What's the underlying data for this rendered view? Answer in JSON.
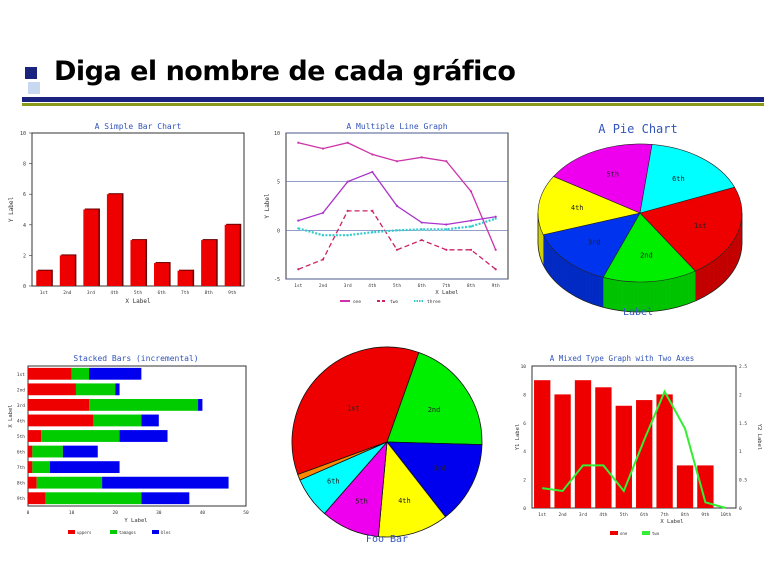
{
  "slide": {
    "title": "Diga el nombre de cada gráfico"
  },
  "chart_data": [
    {
      "id": "simple_bar",
      "type": "bar",
      "title": "A Simple Bar Chart",
      "xlabel": "X Label",
      "ylabel": "Y Label",
      "categories": [
        "1st",
        "2nd",
        "3rd",
        "4th",
        "5th",
        "6th",
        "7th",
        "8th",
        "9th"
      ],
      "values": [
        1,
        2,
        5,
        6,
        3,
        1.5,
        1,
        3,
        4
      ],
      "ylim": [
        0,
        10
      ],
      "yticks": [
        "0",
        "2",
        "4",
        "6",
        "8",
        "10"
      ],
      "colors": {
        "bar": "#ee0000",
        "bar_edge": "#660000"
      }
    },
    {
      "id": "multi_line",
      "type": "line",
      "title": "A Multiple Line Graph",
      "xlabel": "X Label",
      "ylabel": "Y Label",
      "categories": [
        "1st",
        "2nd",
        "3rd",
        "4th",
        "5th",
        "6th",
        "7th",
        "8th",
        "9th"
      ],
      "ylim": [
        -5,
        10
      ],
      "yticks": [
        "-5",
        "0",
        "5",
        "10"
      ],
      "series": [
        {
          "name": "one",
          "values": [
            9,
            8.4,
            9,
            7.8,
            7.1,
            7.5,
            7.1,
            4,
            -2
          ],
          "color": "#cc33aa",
          "dash": "solid"
        },
        {
          "name": "two",
          "values": [
            -4,
            -3,
            2,
            2,
            -2,
            -1,
            -2,
            -2,
            -4
          ],
          "color": "#cc2266",
          "dash": "dashed"
        },
        {
          "name": "three",
          "values": [
            0.2,
            -0.5,
            -0.5,
            -0.2,
            0,
            0.1,
            0.1,
            0.4,
            1.2
          ],
          "color": "#33cccc",
          "dash": "dotted"
        },
        {
          "name": "",
          "values": [
            1,
            1.8,
            5,
            6,
            2.5,
            0.8,
            0.6,
            1,
            1.4
          ],
          "color": "#aa33cc",
          "dash": "solid"
        }
      ],
      "legend_position": "bottom"
    },
    {
      "id": "pie_3d",
      "type": "pie",
      "title": "A Pie Chart",
      "xlabel": "Label",
      "categories": [
        "1st",
        "2nd",
        "3rd",
        "4th",
        "5th",
        "6th"
      ],
      "values": [
        22,
        15,
        14,
        14,
        18,
        17
      ],
      "colors": [
        "#ee0000",
        "#00ee00",
        "#0033ee",
        "#ffff00",
        "#ee00ee",
        "#00ffff"
      ]
    },
    {
      "id": "stacked_bars",
      "type": "bar",
      "orientation": "horizontal",
      "title": "Stacked Bars (incremental)",
      "xlabel": "Y Label",
      "ylabel": "X Label",
      "categories": [
        "1st",
        "2nd",
        "3rd",
        "4th",
        "5th",
        "6th",
        "7th",
        "8th",
        "9th"
      ],
      "xlim": [
        0,
        50
      ],
      "xticks": [
        "0",
        "10",
        "20",
        "30",
        "40",
        "50"
      ],
      "series": [
        {
          "name": "uppers",
          "values": [
            10,
            11,
            14,
            15,
            3,
            1,
            1,
            2,
            4
          ],
          "color": "#ee0000"
        },
        {
          "name": "tamagos",
          "values": [
            4,
            9,
            25,
            11,
            18,
            7,
            4,
            15,
            22
          ],
          "color": "#00cc00"
        },
        {
          "name": "bles",
          "values": [
            12,
            1,
            1,
            4,
            11,
            8,
            16,
            29,
            11
          ],
          "color": "#0000ee"
        }
      ],
      "legend_position": "bottom"
    },
    {
      "id": "pie_flat",
      "type": "pie",
      "xlabel": "Foo Bar",
      "categories": [
        "1st",
        "2nd",
        "3rd",
        "4th",
        "5th",
        "6th",
        "7th"
      ],
      "values": [
        36,
        20,
        14,
        12,
        10,
        7,
        1
      ],
      "colors": [
        "#ee0000",
        "#00ee00",
        "#0000ee",
        "#ffff00",
        "#ee00ee",
        "#00ffff",
        "#ff8800"
      ]
    },
    {
      "id": "mixed_two_axes",
      "type": "bar",
      "title": "A Mixed Type Graph with Two Axes",
      "xlabel": "X Label",
      "ylabel": "Y1 Label",
      "y2label": "Y2 Label",
      "categories": [
        "1st",
        "2nd",
        "3rd",
        "4th",
        "5th",
        "6th",
        "7th",
        "8th",
        "9th",
        "10th"
      ],
      "ylim": [
        0,
        10
      ],
      "yticks": [
        "0",
        "2",
        "4",
        "6",
        "8",
        "10"
      ],
      "y2lim": [
        0,
        2.5
      ],
      "y2ticks": [
        "0",
        "0.5",
        "1",
        "1.5",
        "2",
        "2.5"
      ],
      "series": [
        {
          "name": "one",
          "type": "bar",
          "axis": "y1",
          "values": [
            9,
            8,
            9,
            8.5,
            7.2,
            7.6,
            8,
            3,
            3,
            0
          ],
          "color": "#ee0000"
        },
        {
          "name": "two",
          "type": "line",
          "axis": "y2",
          "values": [
            0.35,
            0.3,
            0.75,
            0.75,
            0.3,
            1.2,
            2.05,
            1.4,
            0.1,
            0
          ],
          "color": "#33ee33"
        }
      ],
      "legend_position": "bottom"
    }
  ]
}
